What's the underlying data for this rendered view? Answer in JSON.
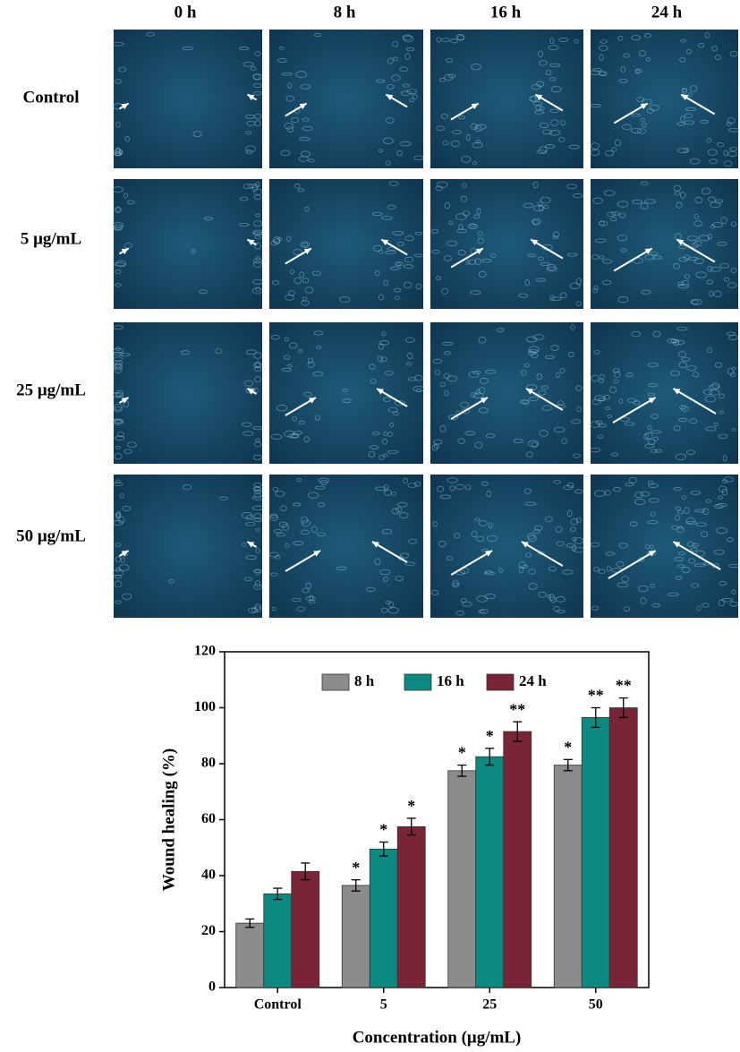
{
  "micrographs": {
    "columns": [
      "0 h",
      "8 h",
      "16 h",
      "24 h"
    ],
    "rows": [
      "Control",
      "5 μg/mL",
      "25 μg/mL",
      "50 μg/mL"
    ]
  },
  "chart_data": {
    "type": "bar",
    "x_label": "Concentration (μg/mL)",
    "y_label": "Wound healing (%)",
    "categories": [
      "Control",
      "5",
      "25",
      "50"
    ],
    "series": [
      {
        "name": "8 h",
        "color": "#8c8c8c",
        "values": [
          23,
          36.5,
          77.5,
          79.5
        ],
        "errors": [
          1.5,
          2,
          2,
          2
        ],
        "annotations": [
          null,
          "*",
          "*",
          "*"
        ]
      },
      {
        "name": "16 h",
        "color": "#0c8a82",
        "values": [
          33.5,
          49.5,
          82.5,
          96.5
        ],
        "errors": [
          2,
          2.5,
          3,
          3.5
        ],
        "annotations": [
          null,
          "*",
          "*",
          "**"
        ]
      },
      {
        "name": "24 h",
        "color": "#7a2438",
        "values": [
          41.5,
          57.5,
          91.5,
          100
        ],
        "errors": [
          3,
          3,
          3.5,
          3.5
        ],
        "annotations": [
          null,
          "*",
          "**",
          "**"
        ]
      }
    ],
    "ylim": [
      0,
      120
    ],
    "yticks": [
      0,
      20,
      40,
      60,
      80,
      100,
      120
    ],
    "legend": "top"
  }
}
